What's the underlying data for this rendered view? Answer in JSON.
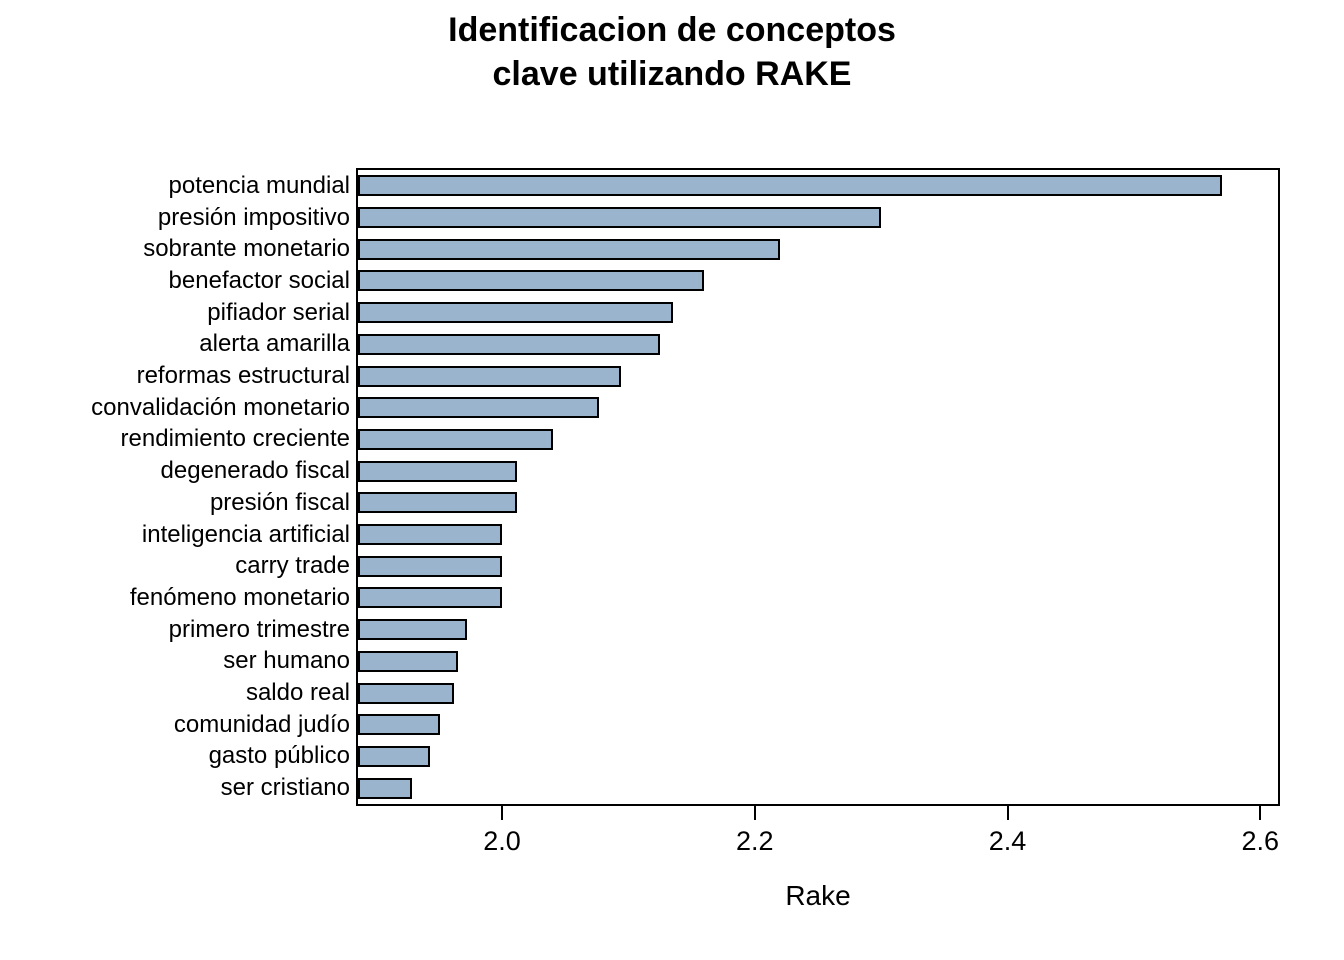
{
  "chart_data": {
    "type": "bar",
    "orientation": "horizontal",
    "title": "Identificacion de conceptos clave utilizando RAKE",
    "title_lines": [
      "Identificacion de conceptos",
      "clave utilizando RAKE"
    ],
    "xlabel": "Rake",
    "categories": [
      "potencia mundial",
      "presión impositivo",
      "sobrante monetario",
      "benefactor social",
      "pifiador serial",
      "alerta amarilla",
      "reformas estructural",
      "convalidación monetario",
      "rendimiento creciente",
      "degenerado fiscal",
      "presión fiscal",
      "inteligencia artificial",
      "carry trade",
      "fenómeno monetario",
      "primero trimestre",
      "ser humano",
      "saldo real",
      "comunidad judío",
      "gasto público",
      "ser cristiano"
    ],
    "values": [
      2.57,
      2.3,
      2.22,
      2.16,
      2.135,
      2.125,
      2.094,
      2.077,
      2.04,
      2.012,
      2.012,
      2.0,
      2.0,
      2.0,
      1.972,
      1.965,
      1.962,
      1.951,
      1.943,
      1.929
    ],
    "xlim": [
      1.886,
      2.614
    ],
    "xticks": [
      2.0,
      2.2,
      2.4,
      2.6
    ],
    "xtick_labels": [
      "2.0",
      "2.2",
      "2.4",
      "2.6"
    ],
    "bar_fill_color": "#9AB4CE",
    "bar_border_color": "#000000",
    "axis_color": "#000000",
    "background_color": "#FFFFFF",
    "grid": false,
    "legend": null
  }
}
